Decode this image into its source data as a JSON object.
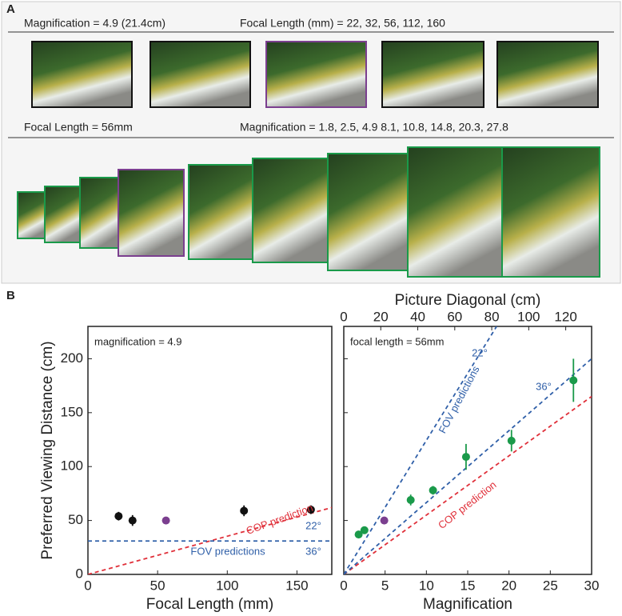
{
  "panel_a": {
    "label": "A",
    "row1": [
      "Magnification = 4.9 (21.4cm)",
      "Focal Length (mm) = 22, 32, 56, 112, 160"
    ],
    "row2": [
      "Focal Length = 56mm",
      "Magnification = 1.8, 2.5, 4.9  8.1, 10.8, 14.8, 20.3, 27.8"
    ]
  },
  "panel_b_label": "B",
  "chart_data": [
    {
      "type": "scatter",
      "ylabel": "Preferred Viewing Distance (cm)",
      "xlabel": "Focal Length (mm)",
      "xlim": [
        0,
        175
      ],
      "xticks": [
        0,
        50,
        100,
        150
      ],
      "ylim": [
        0,
        230
      ],
      "yticks": [
        0,
        50,
        100,
        150,
        200
      ],
      "series": [
        {
          "x": [
            22,
            32,
            56,
            112,
            160
          ],
          "values": [
            54,
            50,
            50,
            59,
            60
          ],
          "errors": [
            4,
            5,
            3,
            5,
            4
          ],
          "colors": [
            "#111111",
            "#111111",
            "#7b3f8f",
            "#111111",
            "#111111"
          ]
        }
      ],
      "lines": [
        {
          "x": [
            0,
            175
          ],
          "values": [
            0,
            62
          ],
          "color": "#e0303a"
        },
        {
          "x": [
            0,
            175
          ],
          "values": [
            31,
            31
          ],
          "color": "#2f5fa8"
        }
      ],
      "annotations": [
        "magnification = 4.9",
        "COP prediction",
        "22°",
        "FOV predictions",
        "36°"
      ]
    },
    {
      "type": "scatter",
      "xlabel": "Magnification",
      "x2label": "Picture Diagonal (cm)",
      "xlim": [
        0,
        30
      ],
      "xticks": [
        0,
        5,
        10,
        15,
        20,
        25,
        30
      ],
      "x2lim": [
        0,
        134
      ],
      "x2ticks": [
        0,
        20,
        40,
        60,
        80,
        100,
        120
      ],
      "ylim": [
        0,
        230
      ],
      "yticks": [
        0,
        50,
        100,
        150,
        200
      ],
      "series": [
        {
          "x": [
            1.8,
            2.5,
            4.9,
            8.1,
            10.8,
            14.8,
            20.3,
            27.8
          ],
          "values": [
            37,
            41,
            50,
            69,
            78,
            109,
            124,
            180
          ],
          "errors": [
            3,
            3,
            3,
            5,
            4,
            12,
            10,
            20
          ],
          "colors": [
            "#1a9a4a",
            "#1a9a4a",
            "#7b3f8f",
            "#1a9a4a",
            "#1a9a4a",
            "#1a9a4a",
            "#1a9a4a",
            "#1a9a4a"
          ]
        }
      ],
      "lines": [
        {
          "x": [
            0,
            30
          ],
          "values": [
            0,
            165
          ],
          "color": "#e0303a"
        },
        {
          "x": [
            0,
            30
          ],
          "values": [
            0,
            200
          ],
          "color": "#2f5fa8"
        },
        {
          "x": [
            0,
            18.5
          ],
          "values": [
            0,
            230
          ],
          "color": "#2f5fa8"
        }
      ],
      "annotations": [
        "focal length = 56mm",
        "22°",
        "FOV predictions",
        "36°",
        "COP prediction"
      ]
    }
  ]
}
